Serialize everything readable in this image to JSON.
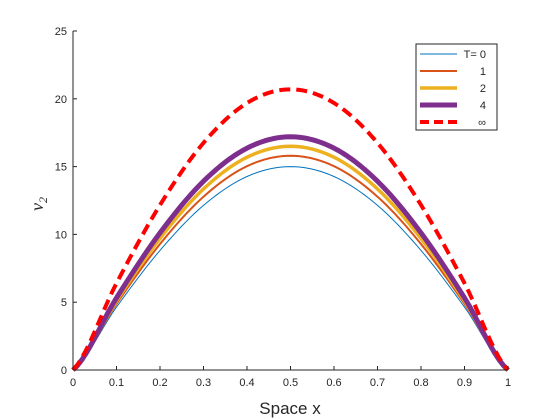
{
  "chart_data": {
    "type": "line",
    "xlabel": "Space x",
    "ylabel": "v",
    "ylabel_subscript": "2",
    "xlim": [
      0,
      1
    ],
    "ylim": [
      0,
      25
    ],
    "xticks": [
      "0",
      "0.1",
      "0.2",
      "0.3",
      "0.4",
      "0.5",
      "0.6",
      "0.7",
      "0.8",
      "0.9",
      "1"
    ],
    "yticks": [
      "0",
      "5",
      "10",
      "15",
      "20",
      "25"
    ],
    "grid": false,
    "legend_position": "top-right",
    "series": [
      {
        "name": "T= 0",
        "color": "#0072BD",
        "style": "solid",
        "x": [
          0,
          0.1,
          0.2,
          0.3,
          0.4,
          0.5,
          0.6,
          0.7,
          0.8,
          0.9,
          1
        ],
        "values": [
          0,
          4.64,
          8.82,
          12.14,
          14.27,
          15.0,
          14.27,
          12.14,
          8.82,
          4.64,
          0
        ]
      },
      {
        "name": "1",
        "color": "#D95319",
        "style": "solid",
        "x": [
          0,
          0.1,
          0.2,
          0.3,
          0.4,
          0.5,
          0.6,
          0.7,
          0.8,
          0.9,
          1
        ],
        "values": [
          0,
          4.88,
          9.29,
          12.78,
          15.03,
          15.8,
          15.03,
          12.78,
          9.29,
          4.88,
          0
        ]
      },
      {
        "name": "2",
        "color": "#EDB120",
        "style": "solid",
        "x": [
          0,
          0.1,
          0.2,
          0.3,
          0.4,
          0.5,
          0.6,
          0.7,
          0.8,
          0.9,
          1
        ],
        "values": [
          0,
          5.1,
          9.7,
          13.35,
          15.69,
          16.5,
          15.69,
          13.35,
          9.7,
          5.1,
          0
        ]
      },
      {
        "name": "4",
        "color": "#7E2F8E",
        "style": "solid",
        "x": [
          0,
          0.1,
          0.2,
          0.3,
          0.4,
          0.5,
          0.6,
          0.7,
          0.8,
          0.9,
          1
        ],
        "values": [
          0,
          5.32,
          10.11,
          13.92,
          16.36,
          17.2,
          16.36,
          13.92,
          10.11,
          5.32,
          0
        ]
      },
      {
        "name": "∞",
        "color": "#FF0000",
        "style": "dashed",
        "x": [
          0,
          0.1,
          0.2,
          0.3,
          0.4,
          0.5,
          0.6,
          0.7,
          0.8,
          0.9,
          1
        ],
        "values": [
          0,
          6.4,
          12.17,
          16.75,
          19.69,
          20.7,
          19.69,
          16.75,
          12.17,
          6.4,
          0
        ]
      }
    ]
  }
}
